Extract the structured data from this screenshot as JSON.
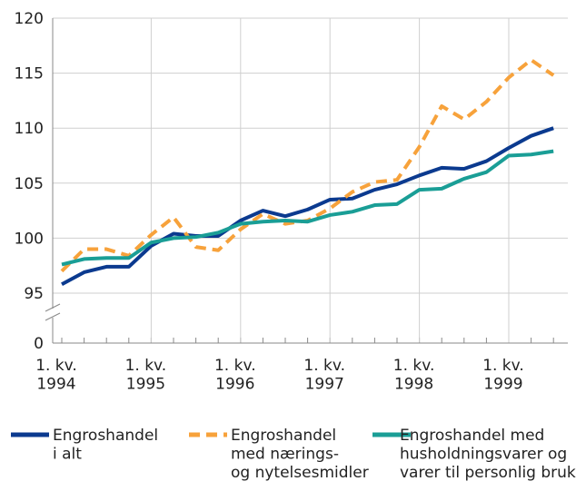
{
  "chart_data": {
    "type": "line",
    "categories": [
      "1. kv.\n1994",
      null,
      null,
      null,
      "1. kv.\n1995",
      null,
      null,
      null,
      "1. kv.\n1996",
      null,
      null,
      null,
      "1. kv.\n1997",
      null,
      null,
      null,
      "1. kv.\n1998",
      null,
      null,
      null,
      "1. kv.\n1999",
      null,
      null
    ],
    "series": [
      {
        "name": "Engroshandel\ni alt",
        "color": "#0b3a8f",
        "dashed": false,
        "values": [
          95.8,
          96.9,
          97.4,
          97.4,
          99.3,
          100.4,
          100.2,
          100.2,
          101.6,
          102.5,
          102.0,
          102.6,
          103.5,
          103.6,
          104.4,
          104.9,
          105.7,
          106.4,
          106.3,
          107.0,
          108.2,
          109.3,
          110.0
        ]
      },
      {
        "name": "Engroshandel\nmed nærings-\nog nytelsesmidler",
        "color": "#f7a23b",
        "dashed": true,
        "values": [
          97.0,
          99.0,
          99.0,
          98.4,
          100.3,
          101.9,
          99.2,
          98.9,
          100.8,
          102.2,
          101.3,
          101.6,
          102.7,
          104.2,
          105.1,
          105.3,
          108.3,
          112.0,
          110.8,
          112.4,
          114.6,
          116.2,
          114.8
        ]
      },
      {
        "name": "Engroshandel med\nhusholdningsvarer og\nvarer til personlig bruk",
        "color": "#1a9e96",
        "dashed": false,
        "values": [
          97.6,
          98.1,
          98.2,
          98.2,
          99.6,
          100.0,
          100.1,
          100.5,
          101.3,
          101.5,
          101.6,
          101.5,
          102.1,
          102.4,
          103.0,
          103.1,
          104.4,
          104.5,
          105.4,
          106.0,
          107.5,
          107.6,
          107.9
        ]
      }
    ],
    "ylim": [
      95,
      120
    ],
    "yticks": [
      0,
      95,
      100,
      105,
      110,
      115,
      120
    ],
    "axis_break": true,
    "grid": true
  }
}
